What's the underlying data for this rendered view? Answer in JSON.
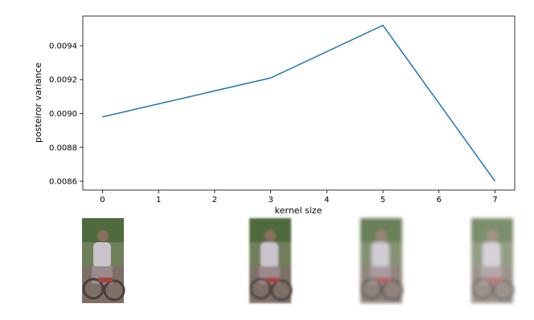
{
  "chart_data": {
    "type": "line",
    "x": [
      0,
      3,
      5,
      7
    ],
    "series": [
      {
        "color": "#1f77b4",
        "values": [
          0.00898,
          0.00921,
          0.00952,
          0.0086
        ]
      }
    ],
    "xlabel": "kernel size",
    "ylabel": "posteiror variance",
    "xlim": [
      -0.35,
      7.35
    ],
    "xticks": [
      0,
      1,
      2,
      3,
      4,
      5,
      6,
      7
    ],
    "ylim": [
      0.008548,
      0.009575
    ],
    "yticks": [
      0.0086,
      0.0088,
      {
        "value": 0.009,
        "label": "0.0090"
      },
      0.0092,
      0.0094
    ],
    "grid": false
  }
}
